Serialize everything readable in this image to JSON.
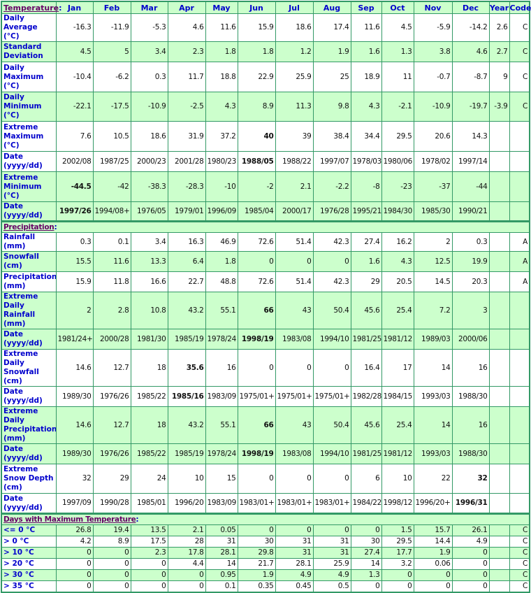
{
  "header": {
    "months": [
      "Jan",
      "Feb",
      "Mar",
      "Apr",
      "May",
      "Jun",
      "Jul",
      "Aug",
      "Sep",
      "Oct",
      "Nov",
      "Dec"
    ],
    "year": "Year",
    "code": "Code"
  },
  "colors": {
    "border": "#339966",
    "shaded_row": "#ccffcc",
    "label": "#0000cc",
    "section_title": "#660066"
  },
  "sections": [
    {
      "title": "Temperature",
      "rows": [
        {
          "label": "Daily Average (°C)",
          "values": [
            "-16.3",
            "-11.9",
            "-5.3",
            "4.6",
            "11.6",
            "15.9",
            "18.6",
            "17.4",
            "11.6",
            "4.5",
            "-5.9",
            "-14.2"
          ],
          "year": "2.6",
          "code": "C",
          "shade": "w",
          "bold": []
        },
        {
          "label": "Standard Deviation",
          "values": [
            "4.5",
            "5",
            "3.4",
            "2.3",
            "1.8",
            "1.8",
            "1.2",
            "1.9",
            "1.6",
            "1.3",
            "3.8",
            "4.6"
          ],
          "year": "2.7",
          "code": "C",
          "shade": "g",
          "bold": []
        },
        {
          "label": "Daily Maximum (°C)",
          "values": [
            "-10.4",
            "-6.2",
            "0.3",
            "11.7",
            "18.8",
            "22.9",
            "25.9",
            "25",
            "18.9",
            "11",
            "-0.7",
            "-8.7"
          ],
          "year": "9",
          "code": "C",
          "shade": "w",
          "bold": []
        },
        {
          "label": "Daily Minimum (°C)",
          "values": [
            "-22.1",
            "-17.5",
            "-10.9",
            "-2.5",
            "4.3",
            "8.9",
            "11.3",
            "9.8",
            "4.3",
            "-2.1",
            "-10.9",
            "-19.7"
          ],
          "year": "-3.9",
          "code": "C",
          "shade": "g",
          "bold": []
        },
        {
          "label": "Extreme Maximum (°C)",
          "values": [
            "7.6",
            "10.5",
            "18.6",
            "31.9",
            "37.2",
            "40",
            "39",
            "38.4",
            "34.4",
            "29.5",
            "20.6",
            "14.3"
          ],
          "year": "",
          "code": "",
          "shade": "w",
          "bold": [
            5
          ]
        },
        {
          "label": "Date (yyyy/dd)",
          "values": [
            "2002/08",
            "1987/25",
            "2000/23",
            "2001/28",
            "1980/23",
            "1988/05",
            "1988/22",
            "1997/07",
            "1978/03",
            "1980/06",
            "1978/02",
            "1997/14"
          ],
          "year": "",
          "code": "",
          "shade": "w",
          "bold": [
            5
          ]
        },
        {
          "label": "Extreme Minimum (°C)",
          "values": [
            "-44.5",
            "-42",
            "-38.3",
            "-28.3",
            "-10",
            "-2",
            "2.1",
            "-2.2",
            "-8",
            "-23",
            "-37",
            "-44"
          ],
          "year": "",
          "code": "",
          "shade": "g",
          "bold": [
            0
          ]
        },
        {
          "label": "Date (yyyy/dd)",
          "values": [
            "1997/26",
            "1994/08+",
            "1976/05",
            "1979/01",
            "1996/09",
            "1985/04",
            "2000/17",
            "1976/28",
            "1995/21",
            "1984/30",
            "1985/30",
            "1990/21"
          ],
          "year": "",
          "code": "",
          "shade": "g",
          "bold": [
            0
          ]
        }
      ]
    },
    {
      "title": "Precipitation",
      "rows": [
        {
          "label": "Rainfall (mm)",
          "values": [
            "0.3",
            "0.1",
            "3.4",
            "16.3",
            "46.9",
            "72.6",
            "51.4",
            "42.3",
            "27.4",
            "16.2",
            "2",
            "0.3"
          ],
          "year": "",
          "code": "A",
          "shade": "w",
          "bold": []
        },
        {
          "label": "Snowfall (cm)",
          "values": [
            "15.5",
            "11.6",
            "13.3",
            "6.4",
            "1.8",
            "0",
            "0",
            "0",
            "1.6",
            "4.3",
            "12.5",
            "19.9"
          ],
          "year": "",
          "code": "A",
          "shade": "g",
          "bold": []
        },
        {
          "label": "Precipitation (mm)",
          "values": [
            "15.9",
            "11.8",
            "16.6",
            "22.7",
            "48.8",
            "72.6",
            "51.4",
            "42.3",
            "29",
            "20.5",
            "14.5",
            "20.3"
          ],
          "year": "",
          "code": "A",
          "shade": "w",
          "bold": []
        },
        {
          "label": "Extreme Daily Rainfall (mm)",
          "values": [
            "2",
            "2.8",
            "10.8",
            "43.2",
            "55.1",
            "66",
            "43",
            "50.4",
            "45.6",
            "25.4",
            "7.2",
            "3"
          ],
          "year": "",
          "code": "",
          "shade": "g",
          "bold": [
            5
          ]
        },
        {
          "label": "Date (yyyy/dd)",
          "values": [
            "1981/24+",
            "2000/28",
            "1981/30",
            "1985/19",
            "1978/24",
            "1998/19",
            "1983/08",
            "1994/10",
            "1981/25",
            "1981/12",
            "1989/03",
            "2000/06"
          ],
          "year": "",
          "code": "",
          "shade": "g",
          "bold": [
            5
          ]
        },
        {
          "label": "Extreme Daily Snowfall (cm)",
          "values": [
            "14.6",
            "12.7",
            "18",
            "35.6",
            "16",
            "0",
            "0",
            "0",
            "16.4",
            "17",
            "14",
            "16"
          ],
          "year": "",
          "code": "",
          "shade": "w",
          "bold": [
            3
          ]
        },
        {
          "label": "Date (yyyy/dd)",
          "values": [
            "1989/30",
            "1976/26",
            "1985/22",
            "1985/16",
            "1983/09",
            "1975/01+",
            "1975/01+",
            "1975/01+",
            "1982/28",
            "1984/15",
            "1993/03",
            "1988/30"
          ],
          "year": "",
          "code": "",
          "shade": "w",
          "bold": [
            3
          ]
        },
        {
          "label": "Extreme Daily Precipitation (mm)",
          "values": [
            "14.6",
            "12.7",
            "18",
            "43.2",
            "55.1",
            "66",
            "43",
            "50.4",
            "45.6",
            "25.4",
            "14",
            "16"
          ],
          "year": "",
          "code": "",
          "shade": "g",
          "bold": [
            5
          ]
        },
        {
          "label": "Date (yyyy/dd)",
          "values": [
            "1989/30",
            "1976/26",
            "1985/22",
            "1985/19",
            "1978/24",
            "1998/19",
            "1983/08",
            "1994/10",
            "1981/25",
            "1981/12",
            "1993/03",
            "1988/30"
          ],
          "year": "",
          "code": "",
          "shade": "g",
          "bold": [
            5
          ]
        },
        {
          "label": "Extreme Snow Depth (cm)",
          "values": [
            "32",
            "29",
            "24",
            "10",
            "15",
            "0",
            "0",
            "0",
            "6",
            "10",
            "22",
            "32"
          ],
          "year": "",
          "code": "",
          "shade": "w",
          "bold": [
            11
          ]
        },
        {
          "label": "Date (yyyy/dd)",
          "values": [
            "1997/09",
            "1990/28",
            "1985/01",
            "1996/20",
            "1983/09",
            "1983/01+",
            "1983/01+",
            "1983/01+",
            "1984/22",
            "1998/12",
            "1996/20+",
            "1996/31"
          ],
          "year": "",
          "code": "",
          "shade": "w",
          "bold": [
            11
          ]
        }
      ]
    },
    {
      "title": "Days with Maximum Temperature",
      "rows": [
        {
          "label": "<= 0 °C",
          "values": [
            "26.8",
            "19.4",
            "13.5",
            "2.1",
            "0.05",
            "0",
            "0",
            "0",
            "0",
            "1.5",
            "15.7",
            "26.1"
          ],
          "year": "",
          "code": "C",
          "shade": "g",
          "bold": []
        },
        {
          "label": "> 0 °C",
          "values": [
            "4.2",
            "8.9",
            "17.5",
            "28",
            "31",
            "30",
            "31",
            "31",
            "30",
            "29.5",
            "14.4",
            "4.9"
          ],
          "year": "",
          "code": "C",
          "shade": "w",
          "bold": []
        },
        {
          "label": "> 10 °C",
          "values": [
            "0",
            "0",
            "2.3",
            "17.8",
            "28.1",
            "29.8",
            "31",
            "31",
            "27.4",
            "17.7",
            "1.9",
            "0"
          ],
          "year": "",
          "code": "C",
          "shade": "g",
          "bold": []
        },
        {
          "label": "> 20 °C",
          "values": [
            "0",
            "0",
            "0",
            "4.4",
            "14",
            "21.7",
            "28.1",
            "25.9",
            "14",
            "3.2",
            "0.06",
            "0"
          ],
          "year": "",
          "code": "C",
          "shade": "w",
          "bold": []
        },
        {
          "label": "> 30 °C",
          "values": [
            "0",
            "0",
            "0",
            "0",
            "0.95",
            "1.9",
            "4.9",
            "4.9",
            "1.3",
            "0",
            "0",
            "0"
          ],
          "year": "",
          "code": "C",
          "shade": "g",
          "bold": []
        },
        {
          "label": "> 35 °C",
          "values": [
            "0",
            "0",
            "0",
            "0",
            "0.1",
            "0.35",
            "0.45",
            "0.5",
            "0",
            "0",
            "0",
            "0"
          ],
          "year": "",
          "code": "C",
          "shade": "w",
          "bold": []
        }
      ]
    }
  ]
}
